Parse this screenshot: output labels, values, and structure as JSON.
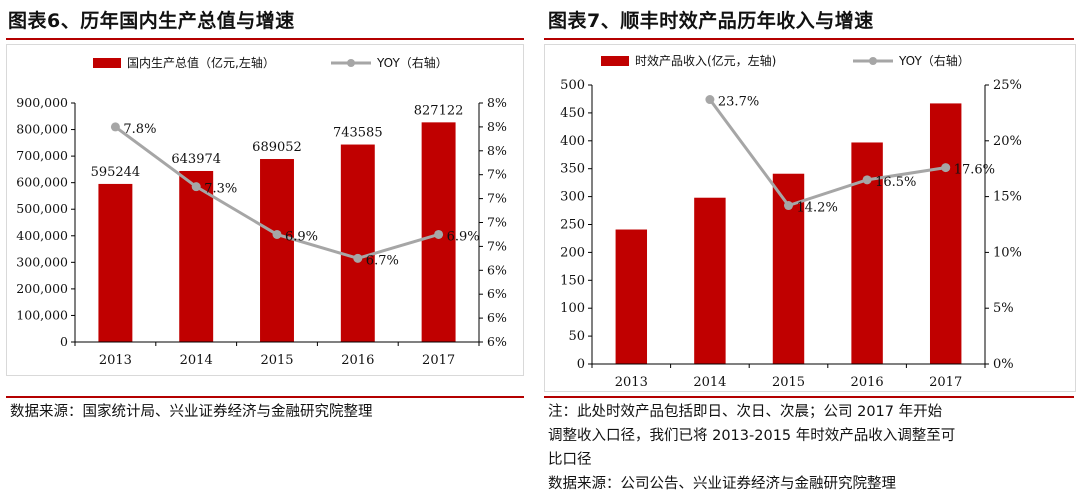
{
  "chart_data": [
    {
      "type": "bar+line",
      "title": "图表6、历年国内生产总值与增速",
      "categories": [
        "2013",
        "2014",
        "2015",
        "2016",
        "2017"
      ],
      "series": [
        {
          "name": "国内生产总值（亿元,左轴）",
          "kind": "bar",
          "axis": "left",
          "values": [
            595244,
            643974,
            689052,
            743585,
            827122
          ],
          "labels": [
            "595244",
            "643974",
            "689052",
            "743585",
            "827122"
          ]
        },
        {
          "name": "YOY（右轴）",
          "kind": "line",
          "axis": "right",
          "values": [
            7.8,
            7.3,
            6.9,
            6.7,
            6.9
          ],
          "labels": [
            "7.8%",
            "7.3%",
            "6.9%",
            "6.7%",
            "6.9%"
          ]
        }
      ],
      "left_axis": {
        "min": 0,
        "max": 900000,
        "ticks": [
          "0",
          "100,000",
          "200,000",
          "300,000",
          "400,000",
          "500,000",
          "600,000",
          "700,000",
          "800,000",
          "900,000"
        ]
      },
      "right_axis": {
        "min": 6.0,
        "max": 8.0,
        "ticks": [
          "6%",
          "6%",
          "6%",
          "6%",
          "7%",
          "7%",
          "7%",
          "7%",
          "8%",
          "8%",
          "8%"
        ]
      },
      "legend_position": "top",
      "source": "数据来源：国家统计局、兴业证券经济与金融研究院整理",
      "colors": {
        "bar": "#c00000",
        "line": "#a6a6a6"
      }
    },
    {
      "type": "bar+line",
      "title": "图表7、顺丰时效产品历年收入与增速",
      "categories": [
        "2013",
        "2014",
        "2015",
        "2016",
        "2017"
      ],
      "series": [
        {
          "name": "时效产品收入(亿元，左轴)",
          "kind": "bar",
          "axis": "left",
          "values": [
            241,
            298,
            341,
            397,
            467
          ]
        },
        {
          "name": "YOY（右轴）",
          "kind": "line",
          "axis": "right",
          "values": [
            null,
            23.7,
            14.2,
            16.5,
            17.6
          ],
          "labels": [
            "",
            "23.7%",
            "14.2%",
            "16.5%",
            "17.6%"
          ]
        }
      ],
      "left_axis": {
        "min": 0,
        "max": 500,
        "ticks": [
          "0",
          "50",
          "100",
          "150",
          "200",
          "250",
          "300",
          "350",
          "400",
          "450",
          "500"
        ]
      },
      "right_axis": {
        "min": 0,
        "max": 25,
        "ticks": [
          "0%",
          "5%",
          "10%",
          "15%",
          "20%",
          "25%"
        ]
      },
      "legend_position": "top",
      "note_lines": [
        "注：此处时效产品包括即日、次日、次晨；公司 2017 年开始",
        "调整收入口径，我们已将 2013-2015 年时效产品收入调整至可",
        "比口径"
      ],
      "source": "数据来源：公司公告、兴业证券经济与金融研究院整理",
      "colors": {
        "bar": "#c00000",
        "line": "#a6a6a6"
      }
    }
  ]
}
